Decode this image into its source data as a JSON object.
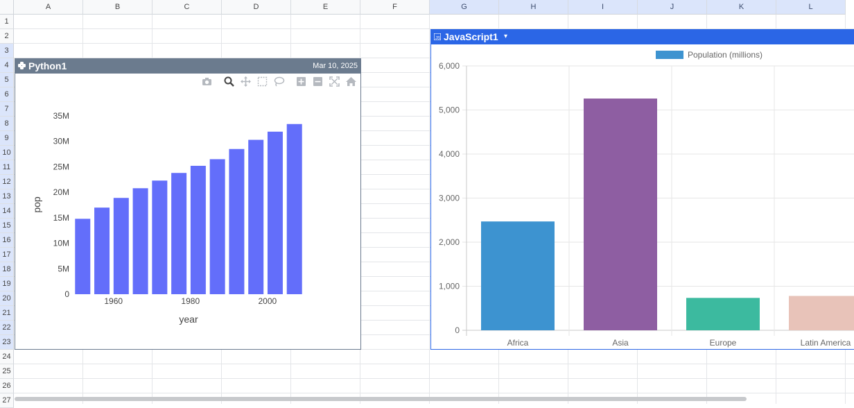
{
  "sheet": {
    "columns": [
      "A",
      "B",
      "C",
      "D",
      "E",
      "F",
      "G",
      "H",
      "I",
      "J",
      "K",
      "L"
    ],
    "selected_columns": [
      "G",
      "H",
      "I",
      "J",
      "K",
      "L"
    ],
    "rows": [
      "1",
      "2",
      "3",
      "4",
      "5",
      "6",
      "7",
      "8",
      "9",
      "10",
      "11",
      "12",
      "13",
      "14",
      "15",
      "16",
      "17",
      "18",
      "19",
      "20",
      "21",
      "22",
      "23",
      "24",
      "25",
      "26",
      "27"
    ],
    "selected_rows": [
      "3",
      "4",
      "5",
      "6",
      "7",
      "8",
      "9",
      "10",
      "11",
      "12",
      "13",
      "14",
      "15",
      "16",
      "17",
      "18",
      "19",
      "20",
      "21",
      "22",
      "23"
    ]
  },
  "python_widget": {
    "title": "Python1",
    "date": "Mar 10, 2025",
    "toolbar_icons": [
      "camera-icon",
      "zoom-icon",
      "pan-icon",
      "box-select-icon",
      "lasso-select-icon",
      "zoom-in-icon",
      "zoom-out-icon",
      "autoscale-icon",
      "reset-axes-icon"
    ],
    "bar_color": "#636efa"
  },
  "javascript_widget": {
    "title": "JavaScript1",
    "legend_label": "Population (millions)",
    "legend_color": "#3d93d0"
  },
  "chart_data": [
    {
      "type": "bar",
      "x": [
        1952,
        1957,
        1962,
        1967,
        1972,
        1977,
        1982,
        1987,
        1992,
        1997,
        2002,
        2007
      ],
      "values": [
        14800000,
        17000000,
        18900000,
        20800000,
        22300000,
        23800000,
        25200000,
        26500000,
        28500000,
        30300000,
        31900000,
        33400000
      ],
      "xlabel": "year",
      "ylabel": "pop",
      "xticks": [
        1960,
        1980,
        2000
      ],
      "yticks": [
        "0",
        "5M",
        "10M",
        "15M",
        "20M",
        "25M",
        "30M",
        "35M"
      ],
      "ylim": [
        0,
        35000000
      ],
      "grid": false
    },
    {
      "type": "bar",
      "categories": [
        "Africa",
        "Asia",
        "Europe",
        "Latin America"
      ],
      "values": [
        2470,
        5260,
        735,
        780
      ],
      "colors": [
        "#3d93d0",
        "#8e5ea2",
        "#3cba9f",
        "#e8c3b9"
      ],
      "series": [
        {
          "name": "Population (millions)",
          "values": [
            2470,
            5260,
            735,
            780
          ]
        }
      ],
      "yticks": [
        "0",
        "1,000",
        "2,000",
        "3,000",
        "4,000",
        "5,000",
        "6,000"
      ],
      "ylim": [
        0,
        6000
      ],
      "grid": true,
      "legend": "top"
    }
  ]
}
